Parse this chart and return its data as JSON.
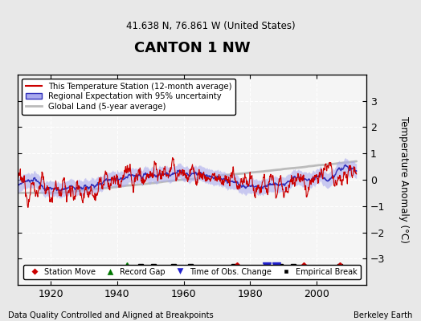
{
  "title": "CANTON 1 NW",
  "subtitle": "41.638 N, 76.861 W (United States)",
  "ylabel": "Temperature Anomaly (°C)",
  "xlabel_note": "Data Quality Controlled and Aligned at Breakpoints",
  "credit": "Berkeley Earth",
  "ylim": [
    -4,
    4
  ],
  "xlim": [
    1910,
    2015
  ],
  "xticks": [
    1920,
    1940,
    1960,
    1980,
    2000
  ],
  "yticks": [
    -3,
    -2,
    -1,
    0,
    1,
    2,
    3
  ],
  "bg_color": "#e8e8e8",
  "plot_bg": "#f0f0f0",
  "station_moves": [
    1976,
    1996,
    2007
  ],
  "record_gaps": [
    1943
  ],
  "tobs_changes": [
    1985,
    1988
  ],
  "empirical_breaks": [
    1947,
    1951,
    1957,
    1962,
    1975,
    1989,
    1993,
    2007
  ],
  "marker_y": -3.3,
  "seed": 12345
}
